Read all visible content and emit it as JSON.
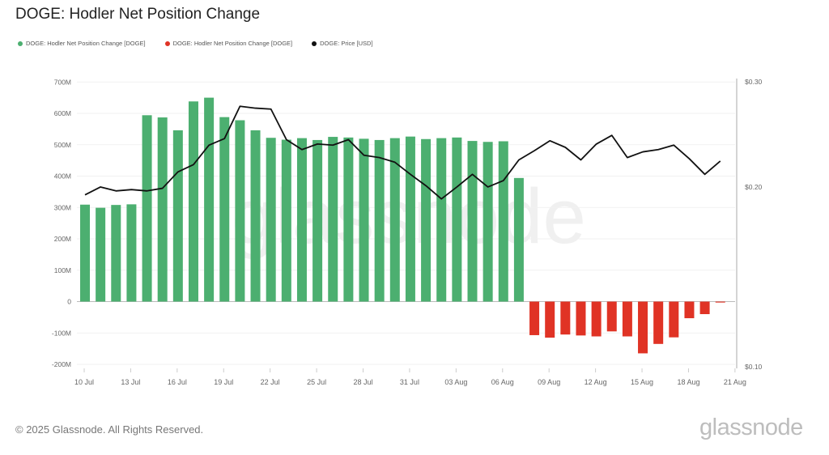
{
  "header": {
    "title": "DOGE: Hodler Net Position Change"
  },
  "footer": {
    "copyright": "© 2025 Glassnode. All Rights Reserved.",
    "logo": "glassnode"
  },
  "chart_data": {
    "type": "bar",
    "title": "DOGE: Hodler Net Position Change",
    "watermark": "glassnode",
    "legend": [
      {
        "label": "DOGE: Hodler Net Position Change [DOGE]",
        "color": "#4caf70"
      },
      {
        "label": "DOGE: Hodler Net Position Change [DOGE]",
        "color": "#e03325"
      },
      {
        "label": "DOGE: Price [USD]",
        "color": "#111111"
      }
    ],
    "dates": [
      "10 Jul",
      "11 Jul",
      "12 Jul",
      "13 Jul",
      "14 Jul",
      "15 Jul",
      "16 Jul",
      "17 Jul",
      "18 Jul",
      "19 Jul",
      "20 Jul",
      "21 Jul",
      "22 Jul",
      "23 Jul",
      "24 Jul",
      "25 Jul",
      "26 Jul",
      "27 Jul",
      "28 Jul",
      "29 Jul",
      "30 Jul",
      "31 Jul",
      "01 Aug",
      "02 Aug",
      "03 Aug",
      "04 Aug",
      "05 Aug",
      "06 Aug",
      "07 Aug",
      "08 Aug",
      "09 Aug",
      "10 Aug",
      "11 Aug",
      "12 Aug",
      "13 Aug",
      "14 Aug",
      "15 Aug",
      "16 Aug",
      "17 Aug",
      "18 Aug",
      "19 Aug",
      "20 Aug"
    ],
    "series": [
      {
        "name": "Hodler Net Position Change [DOGE] (M)",
        "axis": "left",
        "values": [
          309,
          299,
          308,
          310,
          594,
          587,
          546,
          638,
          650,
          588,
          578,
          546,
          522,
          516,
          521,
          515,
          525,
          523,
          519,
          515,
          521,
          526,
          518,
          521,
          523,
          512,
          509,
          511,
          394,
          -107,
          -115,
          -105,
          -108,
          -111,
          -95,
          -111,
          -165,
          -135,
          -114,
          -53,
          -40,
          -3
        ]
      },
      {
        "name": "Price [USD]",
        "axis": "right",
        "type": "line",
        "values": [
          0.194,
          0.2,
          0.197,
          0.198,
          0.197,
          0.199,
          0.212,
          0.218,
          0.235,
          0.241,
          0.273,
          0.271,
          0.27,
          0.24,
          0.231,
          0.236,
          0.235,
          0.24,
          0.226,
          0.224,
          0.22,
          0.21,
          0.201,
          0.191,
          0.2,
          0.21,
          0.2,
          0.205,
          0.222,
          0.23,
          0.239,
          0.233,
          0.222,
          0.236,
          0.244,
          0.224,
          0.229,
          0.231,
          0.235,
          0.223,
          0.21,
          0.221
        ]
      }
    ],
    "positive_color": "#4caf70",
    "negative_color": "#e03325",
    "line_color": "#111111",
    "y_left": {
      "ticks": [
        "700M",
        "600M",
        "500M",
        "400M",
        "300M",
        "200M",
        "100M",
        "0",
        "-100M",
        "-200M"
      ],
      "tick_values": [
        700,
        600,
        500,
        400,
        300,
        200,
        100,
        0,
        -100,
        -200
      ],
      "range": [
        -200,
        700
      ],
      "unit": "M"
    },
    "y_right": {
      "ticks": [
        "$0.30",
        "$0.20",
        "$0.10"
      ],
      "tick_values": [
        0.3,
        0.2,
        0.1
      ],
      "range": [
        0.1,
        0.3
      ],
      "scale": "log"
    },
    "x_ticks": [
      "10 Jul",
      "13 Jul",
      "16 Jul",
      "19 Jul",
      "22 Jul",
      "25 Jul",
      "28 Jul",
      "31 Jul",
      "03 Aug",
      "06 Aug",
      "09 Aug",
      "12 Aug",
      "15 Aug",
      "18 Aug",
      "21 Aug"
    ],
    "grid": true
  }
}
